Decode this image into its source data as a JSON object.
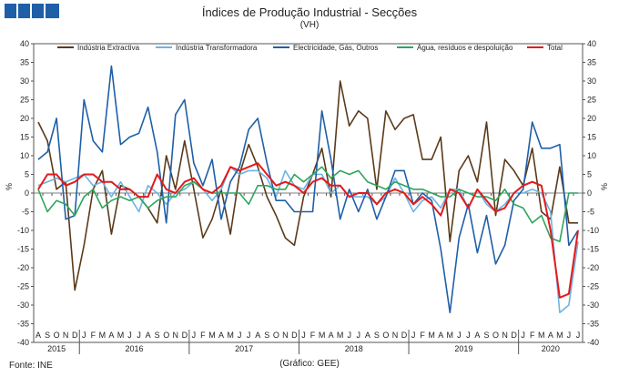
{
  "header": {
    "title": "Índices de Produção Industrial - Secções",
    "subtitle": "(VH)"
  },
  "footer": {
    "source": "Fonte: INE",
    "credit": "(Gráfico: GEE)"
  },
  "colors": {
    "logo": "#1f5fa8"
  },
  "chart_data": {
    "type": "line",
    "ylabel_left": "%",
    "ylabel_right": "%",
    "ylim": [
      -40,
      40
    ],
    "yticks": [
      40,
      35,
      30,
      25,
      20,
      15,
      10,
      5,
      0,
      -5,
      -10,
      -15,
      -20,
      -25,
      -30,
      -35,
      -40
    ],
    "grid": false,
    "legend_position": "top",
    "month_labels": [
      "A",
      "S",
      "O",
      "N",
      "D",
      "J",
      "F",
      "M",
      "A",
      "M",
      "J",
      "J",
      "A",
      "S",
      "O",
      "N",
      "D",
      "J",
      "F",
      "M",
      "A",
      "M",
      "J",
      "J",
      "A",
      "S",
      "O",
      "N",
      "D",
      "J",
      "F",
      "M",
      "A",
      "M",
      "J",
      "J",
      "A",
      "S",
      "O",
      "N",
      "D",
      "J",
      "F",
      "M",
      "A",
      "M",
      "J",
      "J",
      "A",
      "S",
      "O",
      "N",
      "D",
      "J",
      "F",
      "M",
      "A",
      "M",
      "J",
      "J"
    ],
    "years": [
      {
        "label": "2015",
        "start": 0,
        "end": 4
      },
      {
        "label": "2016",
        "start": 5,
        "end": 16
      },
      {
        "label": "2017",
        "start": 17,
        "end": 28
      },
      {
        "label": "2018",
        "start": 29,
        "end": 40
      },
      {
        "label": "2019",
        "start": 41,
        "end": 52
      },
      {
        "label": "2020",
        "start": 53,
        "end": 59
      }
    ],
    "series": [
      {
        "name": "Indústria Extractiva",
        "color": "#5b3a1a",
        "values": [
          19,
          14,
          1,
          3,
          -26,
          -14,
          1,
          6,
          -11,
          2,
          1,
          -1,
          -4,
          -8,
          10,
          1,
          14,
          1,
          -12,
          -7,
          1,
          -11,
          5,
          13,
          7,
          -1,
          -6,
          -12,
          -14,
          -1,
          5,
          12,
          -1,
          30,
          18,
          22,
          20,
          1,
          22,
          17,
          20,
          21,
          9,
          9,
          15,
          -13,
          6,
          10,
          3,
          19,
          -6,
          9,
          6,
          2,
          12,
          -5,
          -7,
          7,
          -8,
          -8
        ]
      },
      {
        "name": "Indústria Transformadora",
        "color": "#6cb4e4",
        "values": [
          2,
          3,
          4,
          3,
          4,
          5,
          2,
          3,
          -1,
          3,
          -1,
          -5,
          2,
          0,
          -3,
          0,
          1,
          3,
          1,
          -2,
          1,
          7,
          5,
          6,
          6,
          4,
          -1,
          6,
          2,
          1,
          5,
          5,
          0,
          2,
          -1,
          -1,
          -1,
          -3,
          -1,
          4,
          0,
          -5,
          -2,
          -1,
          -4,
          1,
          1,
          -4,
          1,
          -3,
          -5,
          -3,
          0,
          0,
          1,
          0,
          -5,
          -32,
          -30,
          -13
        ]
      },
      {
        "name": "Electricidade, Gás, Outros",
        "color": "#1f5fa8",
        "values": [
          9,
          11,
          20,
          -7,
          -6,
          25,
          14,
          11,
          34,
          13,
          15,
          16,
          23,
          11,
          -8,
          21,
          25,
          8,
          2,
          9,
          -7,
          3,
          7,
          17,
          20,
          8,
          -2,
          -2,
          -5,
          -5,
          -5,
          22,
          9,
          -7,
          1,
          -5,
          1,
          -7,
          -1,
          6,
          6,
          -3,
          0,
          -2,
          -15,
          -32,
          -12,
          -3,
          -16,
          -6,
          -19,
          -14,
          -2,
          1,
          19,
          12,
          12,
          13,
          -14,
          -10
        ]
      },
      {
        "name": "Água, resíduos e despoluição",
        "color": "#2ea55c",
        "values": [
          1,
          -5,
          -2,
          -3,
          -6,
          -1,
          1,
          -4,
          -2,
          -1,
          -2,
          -1,
          -4,
          -2,
          -1,
          -1,
          2,
          3,
          1,
          0,
          0,
          0,
          0,
          -3,
          2,
          2,
          1,
          1,
          5,
          3,
          5,
          7,
          4,
          6,
          5,
          6,
          3,
          2,
          1,
          3,
          2,
          1,
          1,
          0,
          -1,
          -1,
          1,
          0,
          -1,
          -1,
          -2,
          1,
          -3,
          -4,
          -8,
          -6,
          -12,
          -13,
          0,
          0
        ]
      },
      {
        "name": "Total",
        "color": "#e41a1c",
        "values": [
          1,
          5,
          5,
          2,
          3,
          5,
          5,
          3,
          3,
          1,
          1,
          -1,
          -1,
          5,
          1,
          0,
          3,
          4,
          1,
          0,
          2,
          7,
          6,
          7,
          8,
          5,
          2,
          3,
          2,
          0,
          3,
          4,
          2,
          2,
          -1,
          0,
          0,
          -3,
          0,
          1,
          0,
          -3,
          -1,
          -3,
          -6,
          1,
          0,
          -4,
          1,
          -2,
          -5,
          -4,
          0,
          2,
          3,
          2,
          -10,
          -28,
          -27,
          -10
        ]
      }
    ]
  }
}
